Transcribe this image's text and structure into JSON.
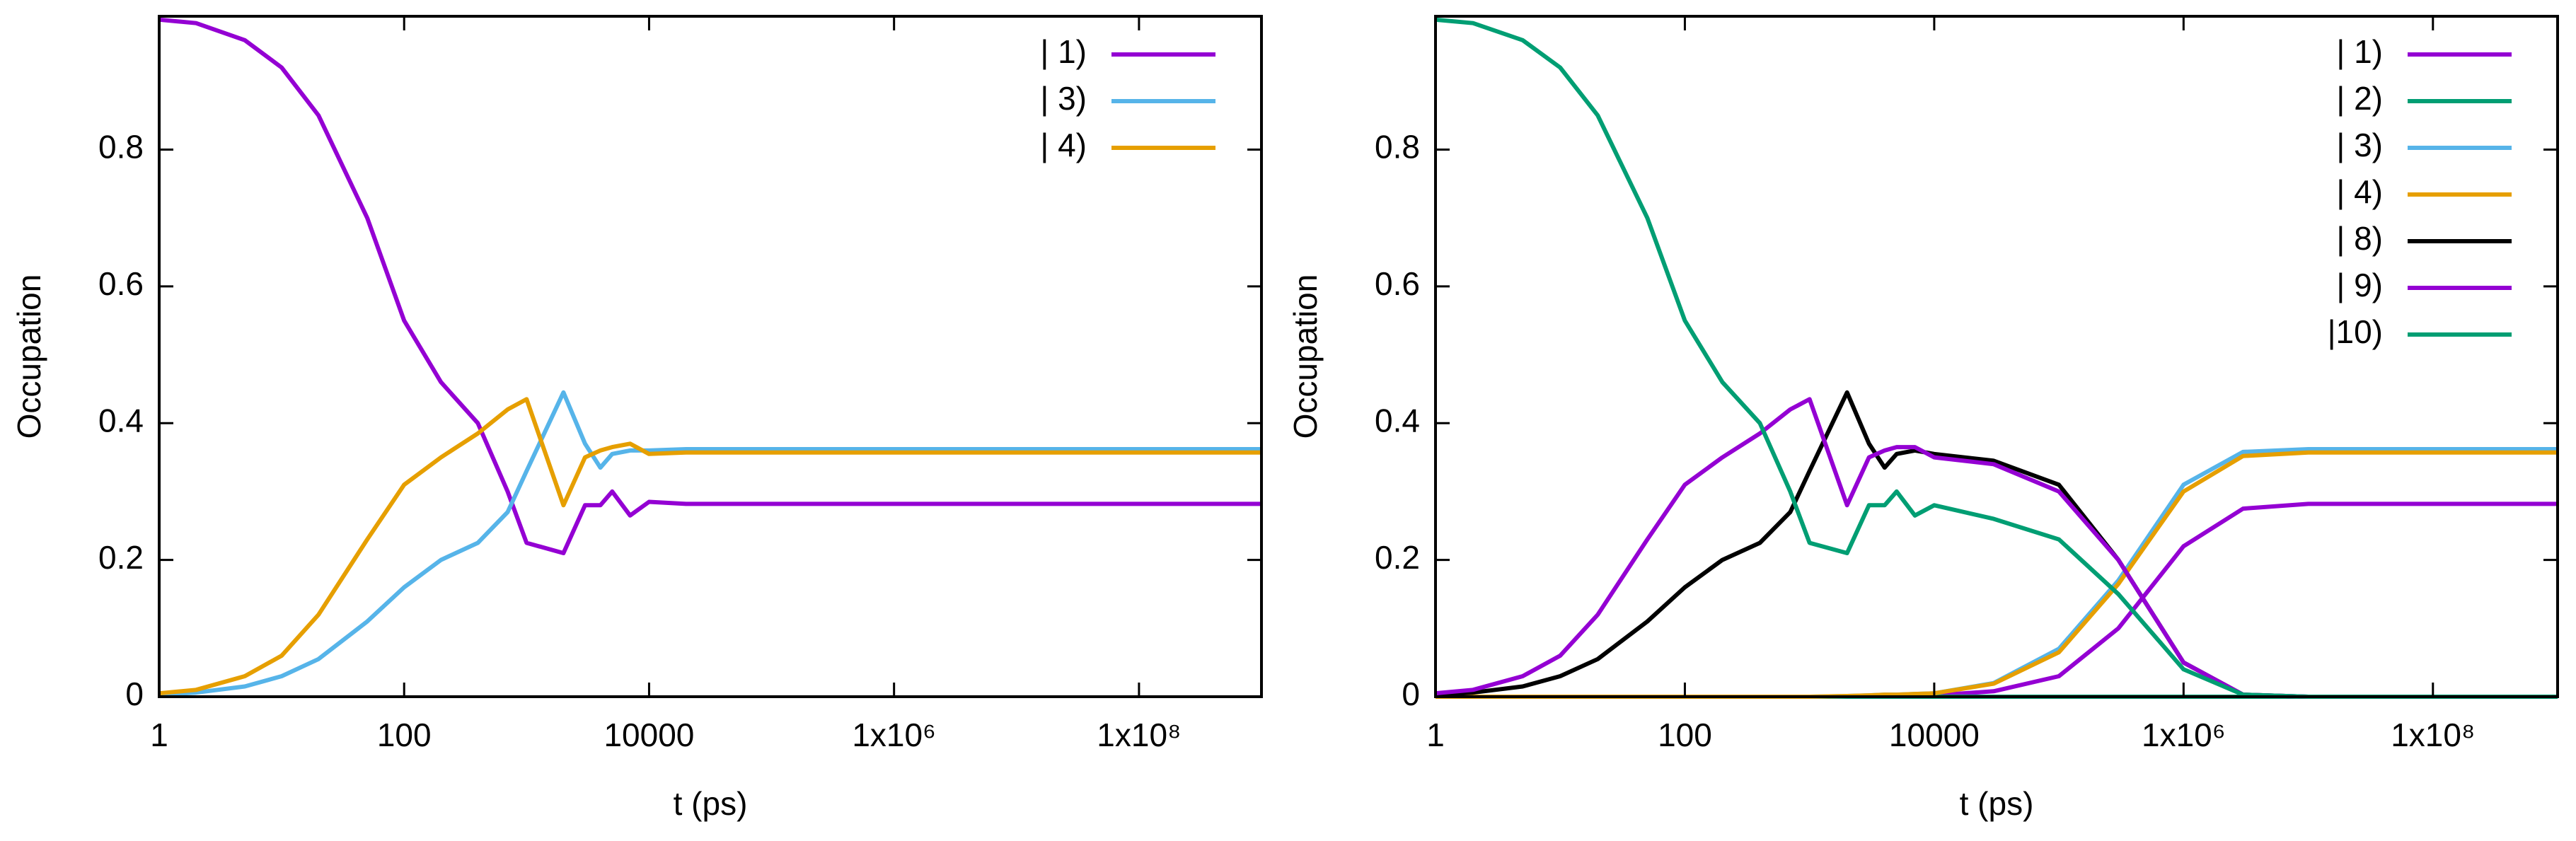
{
  "chart_data": [
    {
      "type": "line",
      "xlabel": "t (ps)",
      "ylabel": "Occupation",
      "log_x": true,
      "legend": "upper right",
      "xlim": [
        1,
        1000000000
      ],
      "ylim": [
        0,
        0.995
      ],
      "xticks": [
        1,
        100,
        10000,
        {
          "value": 1000000,
          "label": "1x10⁶"
        },
        {
          "value": 100000000,
          "label": "1x10⁸"
        }
      ],
      "yticks": [
        0,
        0.2,
        0.4,
        0.6,
        0.8
      ],
      "x": [
        1,
        2,
        5,
        10,
        20,
        50,
        100,
        200,
        400,
        700,
        1000,
        2000,
        3000,
        4000,
        5000,
        7000,
        10000,
        20000,
        100000,
        1000000,
        10000000,
        100000000,
        1000000000
      ],
      "series": [
        {
          "name": "| 1)",
          "color": "#9400d3",
          "values": [
            0.99,
            0.985,
            0.96,
            0.92,
            0.85,
            0.7,
            0.55,
            0.46,
            0.4,
            0.3,
            0.225,
            0.21,
            0.28,
            0.28,
            0.3,
            0.265,
            0.285,
            0.282,
            0.282,
            0.282,
            0.282,
            0.282,
            0.282
          ]
        },
        {
          "name": "| 3)",
          "color": "#56b4e9",
          "values": [
            0.003,
            0.006,
            0.015,
            0.03,
            0.055,
            0.11,
            0.16,
            0.2,
            0.225,
            0.27,
            0.33,
            0.445,
            0.37,
            0.335,
            0.355,
            0.36,
            0.36,
            0.362,
            0.362,
            0.362,
            0.362,
            0.362,
            0.362
          ]
        },
        {
          "name": "| 4)",
          "color": "#e69f00",
          "values": [
            0.005,
            0.01,
            0.03,
            0.06,
            0.12,
            0.23,
            0.31,
            0.35,
            0.385,
            0.42,
            0.435,
            0.28,
            0.35,
            0.36,
            0.365,
            0.37,
            0.355,
            0.357,
            0.357,
            0.357,
            0.357,
            0.357,
            0.357
          ]
        }
      ]
    },
    {
      "type": "line",
      "xlabel": "t (ps)",
      "ylabel": "Occupation",
      "log_x": true,
      "legend": "upper right",
      "xlim": [
        1,
        1000000000
      ],
      "ylim": [
        0,
        0.995
      ],
      "xticks": [
        1,
        100,
        10000,
        {
          "value": 1000000,
          "label": "1x10⁶"
        },
        {
          "value": 100000000,
          "label": "1x10⁸"
        }
      ],
      "yticks": [
        0,
        0.2,
        0.4,
        0.6,
        0.8
      ],
      "x": [
        1,
        2,
        5,
        10,
        20,
        50,
        100,
        200,
        400,
        700,
        1000,
        2000,
        3000,
        4000,
        5000,
        7000,
        10000,
        30000,
        100000,
        300000,
        1000000,
        3000000,
        10000000,
        100000000,
        1000000000
      ],
      "series": [
        {
          "name": "| 1)",
          "color": "#9400d3",
          "values": [
            0,
            0,
            0,
            0,
            0,
            0,
            0,
            0,
            0,
            0,
            0,
            0,
            0,
            0,
            0,
            0.001,
            0.002,
            0.008,
            0.03,
            0.1,
            0.22,
            0.275,
            0.282,
            0.282,
            0.282
          ]
        },
        {
          "name": "| 2)",
          "color": "#009e73",
          "values": [
            0,
            0,
            0,
            0,
            0,
            0,
            0,
            0,
            0,
            0,
            0,
            0,
            0,
            0,
            0,
            0,
            0,
            0,
            0,
            0,
            0,
            0,
            0,
            0,
            0
          ]
        },
        {
          "name": "| 3)",
          "color": "#56b4e9",
          "values": [
            0,
            0,
            0,
            0,
            0,
            0,
            0,
            0,
            0,
            0,
            0,
            0.001,
            0.002,
            0.003,
            0.003,
            0.004,
            0.005,
            0.02,
            0.07,
            0.17,
            0.31,
            0.358,
            0.362,
            0.362,
            0.362
          ]
        },
        {
          "name": "| 4)",
          "color": "#e69f00",
          "values": [
            0,
            0,
            0,
            0,
            0,
            0,
            0,
            0,
            0,
            0,
            0,
            0.001,
            0.002,
            0.003,
            0.003,
            0.004,
            0.005,
            0.019,
            0.065,
            0.165,
            0.3,
            0.352,
            0.357,
            0.357,
            0.357
          ]
        },
        {
          "name": "| 8)",
          "color": "#000000",
          "values": [
            0.003,
            0.006,
            0.015,
            0.03,
            0.055,
            0.11,
            0.16,
            0.2,
            0.225,
            0.27,
            0.33,
            0.445,
            0.37,
            0.335,
            0.355,
            0.36,
            0.355,
            0.345,
            0.31,
            0.2,
            0.05,
            0.003,
            0,
            0,
            0
          ]
        },
        {
          "name": "| 9)",
          "color": "#9400d3",
          "values": [
            0.005,
            0.01,
            0.03,
            0.06,
            0.12,
            0.23,
            0.31,
            0.35,
            0.385,
            0.42,
            0.435,
            0.28,
            0.35,
            0.36,
            0.365,
            0.365,
            0.35,
            0.34,
            0.3,
            0.2,
            0.05,
            0.003,
            0,
            0,
            0
          ]
        },
        {
          "name": "|10)",
          "color": "#009e73",
          "values": [
            0.99,
            0.985,
            0.96,
            0.92,
            0.85,
            0.7,
            0.55,
            0.46,
            0.4,
            0.3,
            0.225,
            0.21,
            0.28,
            0.28,
            0.3,
            0.265,
            0.28,
            0.26,
            0.23,
            0.15,
            0.04,
            0.003,
            0,
            0,
            0
          ]
        }
      ]
    }
  ]
}
